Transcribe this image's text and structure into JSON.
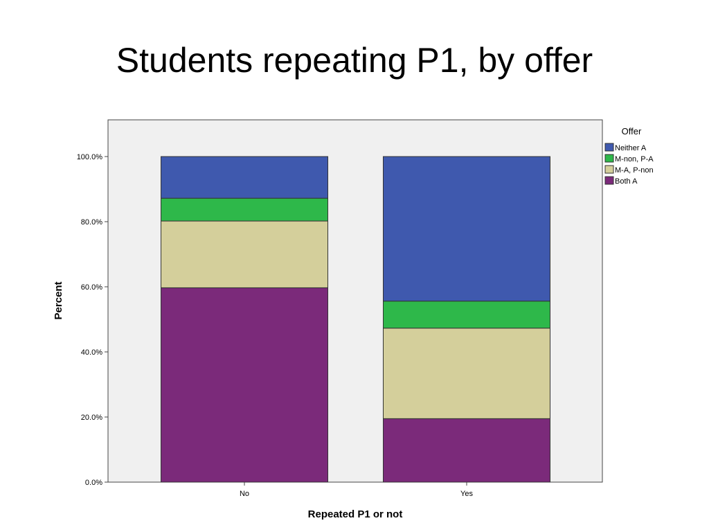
{
  "slide": {
    "title": "Students repeating P1, by offer"
  },
  "chart_data": {
    "type": "bar",
    "stacked": true,
    "categories": [
      "No",
      "Yes"
    ],
    "series": [
      {
        "name": "Both A",
        "color": "#7b2a7a",
        "values": [
          59.7,
          19.5
        ]
      },
      {
        "name": "M-A, P-non",
        "color": "#d4cf9b",
        "values": [
          20.5,
          27.8
        ]
      },
      {
        "name": "M-non, P-A",
        "color": "#2eb84a",
        "values": [
          7.0,
          8.3
        ]
      },
      {
        "name": "Neither A",
        "color": "#3f59ae",
        "values": [
          12.8,
          44.4
        ]
      }
    ],
    "legend_order": [
      "Neither A",
      "M-non, P-A",
      "M-A, P-non",
      "Both A"
    ],
    "legend_title": "Offer",
    "legend_position": "right",
    "xlabel": "Repeated P1 or not",
    "ylabel": "Percent",
    "ylim": [
      0,
      100
    ],
    "yticks": [
      "0.0%",
      "20.0%",
      "40.0%",
      "60.0%",
      "80.0%",
      "100.0%"
    ],
    "plot_background": "#f0f0f0",
    "grid": false
  }
}
